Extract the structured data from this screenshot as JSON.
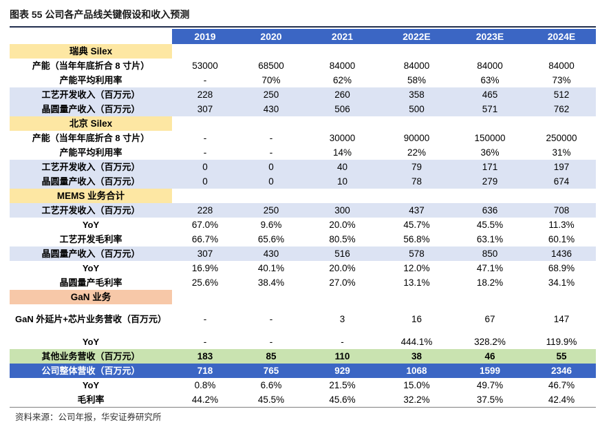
{
  "title": "图表 55 公司各产品线关键假设和收入预测",
  "source": "资料来源：公司年报，华安证券研究所",
  "columns": [
    "2019",
    "2020",
    "2021",
    "2022E",
    "2023E",
    "2024E"
  ],
  "rows": [
    {
      "type": "section",
      "label": "瑞典 Silex",
      "cls": "sect"
    },
    {
      "type": "data",
      "style": "",
      "label": "产能（当年年底折合 8 寸片）",
      "values": [
        "53000",
        "68500",
        "84000",
        "84000",
        "84000",
        "84000"
      ]
    },
    {
      "type": "data",
      "style": "",
      "label": "产能平均利用率",
      "values": [
        "-",
        "70%",
        "62%",
        "58%",
        "63%",
        "73%"
      ]
    },
    {
      "type": "data",
      "style": "band",
      "label": "工艺开发收入（百万元）",
      "values": [
        "228",
        "250",
        "260",
        "358",
        "465",
        "512"
      ]
    },
    {
      "type": "data",
      "style": "band",
      "label": "晶圆量产收入（百万元）",
      "values": [
        "307",
        "430",
        "506",
        "500",
        "571",
        "762"
      ]
    },
    {
      "type": "section",
      "label": "北京 Silex",
      "cls": "sect"
    },
    {
      "type": "data",
      "style": "",
      "label": "产能（当年年底折合 8 寸片）",
      "values": [
        "-",
        "-",
        "30000",
        "90000",
        "150000",
        "250000"
      ]
    },
    {
      "type": "data",
      "style": "",
      "label": "产能平均利用率",
      "values": [
        "-",
        "-",
        "14%",
        "22%",
        "36%",
        "31%"
      ]
    },
    {
      "type": "data",
      "style": "band",
      "label": "工艺开发收入（百万元）",
      "values": [
        "0",
        "0",
        "40",
        "79",
        "171",
        "197"
      ]
    },
    {
      "type": "data",
      "style": "band",
      "label": "晶圆量产收入（百万元）",
      "values": [
        "0",
        "0",
        "10",
        "78",
        "279",
        "674"
      ]
    },
    {
      "type": "section",
      "label": "MEMS 业务合计",
      "cls": "sect"
    },
    {
      "type": "data",
      "style": "band",
      "label": "工艺开发收入（百万元）",
      "values": [
        "228",
        "250",
        "300",
        "437",
        "636",
        "708"
      ]
    },
    {
      "type": "data",
      "style": "",
      "label": "YoY",
      "values": [
        "67.0%",
        "9.6%",
        "20.0%",
        "45.7%",
        "45.5%",
        "11.3%"
      ]
    },
    {
      "type": "data",
      "style": "",
      "label": "工艺开发毛利率",
      "values": [
        "66.7%",
        "65.6%",
        "80.5%",
        "56.8%",
        "63.1%",
        "60.1%"
      ]
    },
    {
      "type": "data",
      "style": "band",
      "label": "晶圆量产收入（百万元）",
      "values": [
        "307",
        "430",
        "516",
        "578",
        "850",
        "1436"
      ]
    },
    {
      "type": "data",
      "style": "",
      "label": "YoY",
      "values": [
        "16.9%",
        "40.1%",
        "20.0%",
        "12.0%",
        "47.1%",
        "68.9%"
      ]
    },
    {
      "type": "data",
      "style": "",
      "label": "晶圆量产毛利率",
      "values": [
        "25.6%",
        "38.4%",
        "27.0%",
        "13.1%",
        "18.2%",
        "34.1%"
      ]
    },
    {
      "type": "section",
      "label": "GaN 业务",
      "cls": "sect gan"
    },
    {
      "type": "data",
      "style": "tall",
      "label": "GaN 外延片+芯片业务营收（百万元）",
      "values": [
        "-",
        "-",
        "3",
        "16",
        "67",
        "147"
      ]
    },
    {
      "type": "data",
      "style": "",
      "label": "YoY",
      "values": [
        "-",
        "-",
        "-",
        "444.1%",
        "328.2%",
        "119.9%"
      ]
    },
    {
      "type": "data",
      "style": "green",
      "label": "其他业务营收（百万元）",
      "values": [
        "183",
        "85",
        "110",
        "38",
        "46",
        "55"
      ]
    },
    {
      "type": "data",
      "style": "blue",
      "label": "公司整体营收（百万元）",
      "values": [
        "718",
        "765",
        "929",
        "1068",
        "1599",
        "2346"
      ]
    },
    {
      "type": "data",
      "style": "",
      "label": "YoY",
      "values": [
        "0.8%",
        "6.6%",
        "21.5%",
        "15.0%",
        "49.7%",
        "46.7%"
      ]
    },
    {
      "type": "data",
      "style": "",
      "label": "毛利率",
      "values": [
        "44.2%",
        "45.5%",
        "45.6%",
        "32.2%",
        "37.5%",
        "42.4%"
      ]
    }
  ]
}
